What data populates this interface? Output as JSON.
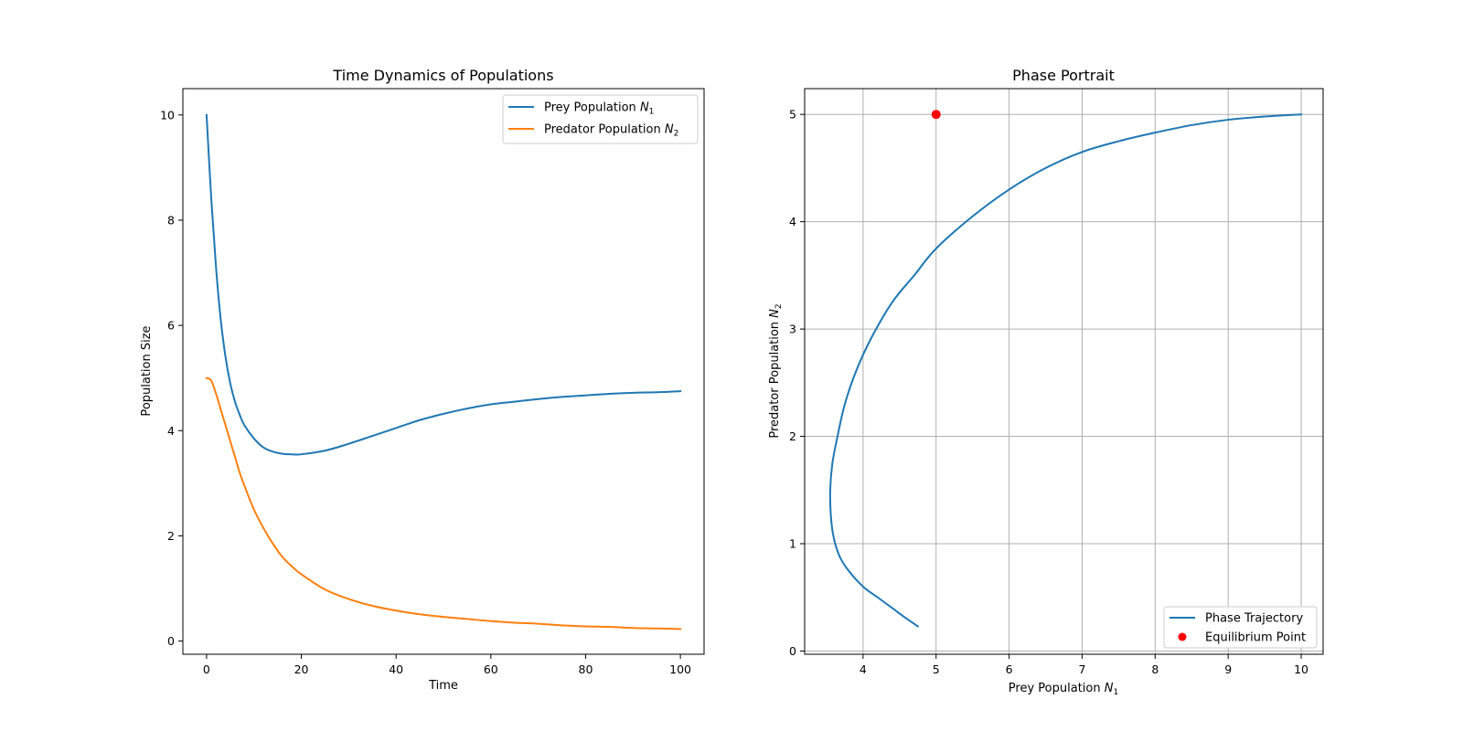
{
  "chart_data": [
    {
      "type": "line",
      "title": "Time Dynamics of Populations",
      "xlabel": "Time",
      "ylabel": "Population Size",
      "xlim": [
        -5,
        105
      ],
      "ylim": [
        -0.25,
        10.5
      ],
      "xticks": [
        0,
        20,
        40,
        60,
        80,
        100
      ],
      "yticks": [
        0,
        2,
        4,
        6,
        8,
        10
      ],
      "grid": false,
      "legend_position": "upper right",
      "x": [
        0,
        1,
        2,
        3,
        4,
        5,
        6,
        7,
        8,
        10,
        12,
        14,
        16,
        18,
        20,
        25,
        30,
        35,
        40,
        45,
        50,
        55,
        60,
        65,
        70,
        75,
        80,
        85,
        90,
        95,
        100
      ],
      "series": [
        {
          "name": "Prey Population N1",
          "legend_base": "Prey Population ",
          "legend_var": "N",
          "legend_sub": "1",
          "color": "#1f77b4",
          "values": [
            10.0,
            8.4,
            7.1,
            6.1,
            5.4,
            4.9,
            4.55,
            4.3,
            4.1,
            3.85,
            3.68,
            3.6,
            3.56,
            3.55,
            3.55,
            3.62,
            3.75,
            3.9,
            4.05,
            4.2,
            4.32,
            4.42,
            4.5,
            4.55,
            4.6,
            4.64,
            4.67,
            4.7,
            4.72,
            4.73,
            4.75
          ]
        },
        {
          "name": "Predator Population N2",
          "legend_base": "Predator Population ",
          "legend_var": "N",
          "legend_sub": "2",
          "color": "#ff7f0e",
          "values": [
            5.0,
            4.95,
            4.7,
            4.4,
            4.1,
            3.8,
            3.5,
            3.2,
            2.95,
            2.5,
            2.15,
            1.85,
            1.6,
            1.42,
            1.27,
            0.98,
            0.8,
            0.67,
            0.58,
            0.51,
            0.46,
            0.42,
            0.38,
            0.35,
            0.33,
            0.3,
            0.28,
            0.27,
            0.25,
            0.24,
            0.23
          ]
        }
      ]
    },
    {
      "type": "line",
      "title": "Phase Portrait",
      "xlabel_base": "Prey Population ",
      "xlabel_var": "N",
      "xlabel_sub": "1",
      "ylabel_base": "Predator Population ",
      "ylabel_var": "N",
      "ylabel_sub": "2",
      "xlim": [
        3.2,
        10.3
      ],
      "ylim": [
        -0.03,
        5.24
      ],
      "xticks": [
        4,
        5,
        6,
        7,
        8,
        9,
        10
      ],
      "yticks": [
        0,
        1,
        2,
        3,
        4,
        5
      ],
      "grid": true,
      "legend_position": "lower right",
      "series": [
        {
          "name": "Phase Trajectory",
          "color": "#1f77b4",
          "x": [
            10.0,
            9.5,
            9.0,
            8.5,
            8.0,
            7.5,
            7.0,
            6.5,
            6.0,
            5.5,
            5.0,
            4.7,
            4.4,
            4.1,
            3.9,
            3.75,
            3.65,
            3.58,
            3.55,
            3.56,
            3.6,
            3.68,
            3.8,
            4.0,
            4.2,
            4.4,
            4.6,
            4.75
          ],
          "y": [
            5.0,
            4.98,
            4.95,
            4.9,
            4.83,
            4.75,
            4.65,
            4.5,
            4.3,
            4.05,
            3.75,
            3.5,
            3.25,
            2.9,
            2.6,
            2.3,
            2.0,
            1.75,
            1.5,
            1.25,
            1.05,
            0.88,
            0.75,
            0.6,
            0.5,
            0.4,
            0.3,
            0.23
          ]
        },
        {
          "name": "Equilibrium Point",
          "type": "scatter",
          "color": "#ff0000",
          "x": [
            5
          ],
          "y": [
            5
          ]
        }
      ]
    }
  ]
}
